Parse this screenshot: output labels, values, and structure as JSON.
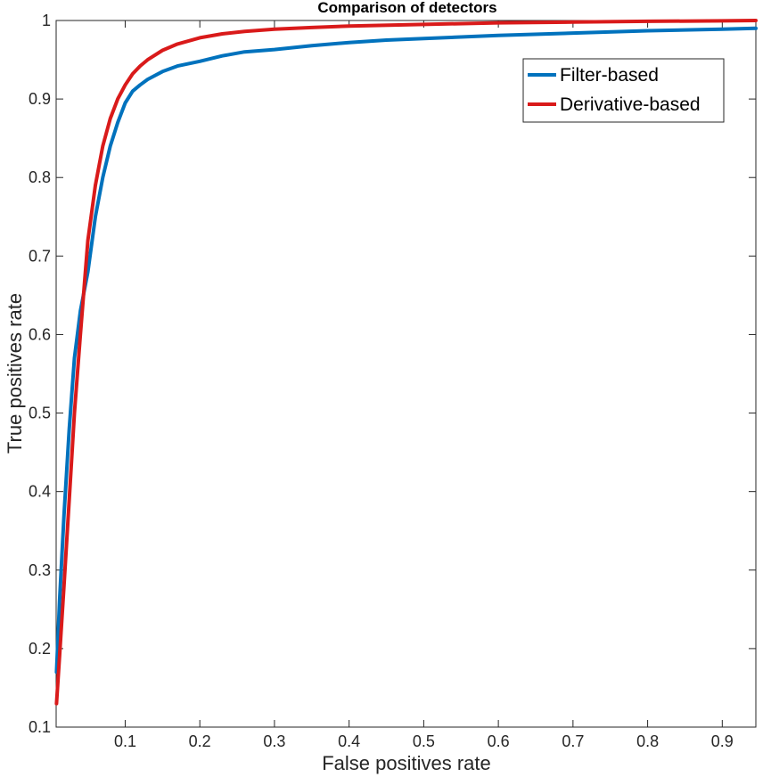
{
  "chart_data": {
    "type": "line",
    "title": "Comparison of detectors",
    "xlabel": "False positives rate",
    "ylabel": "True positives rate",
    "xlim": [
      0.0075,
      0.945
    ],
    "ylim": [
      0.1,
      1.0
    ],
    "xticks": [
      0.1,
      0.2,
      0.3,
      0.4,
      0.5,
      0.6,
      0.7,
      0.8,
      0.9
    ],
    "xtick_labels": [
      "0.1",
      "0.2",
      "0.3",
      "0.4",
      "0.5",
      "0.6",
      "0.7",
      "0.8",
      "0.9"
    ],
    "yticks": [
      0.1,
      0.2,
      0.3,
      0.4,
      0.5,
      0.6,
      0.7,
      0.8,
      0.9,
      1.0
    ],
    "ytick_labels": [
      "0.1",
      "0.2",
      "0.3",
      "0.4",
      "0.5",
      "0.6",
      "0.7",
      "0.8",
      "0.9",
      "1"
    ],
    "grid": false,
    "legend_position": "top-right",
    "series": [
      {
        "name": "Filter-based",
        "color": "#0072BD",
        "x": [
          0.008,
          0.012,
          0.018,
          0.025,
          0.032,
          0.04,
          0.05,
          0.06,
          0.07,
          0.08,
          0.09,
          0.1,
          0.11,
          0.12,
          0.13,
          0.15,
          0.17,
          0.2,
          0.23,
          0.26,
          0.3,
          0.35,
          0.4,
          0.45,
          0.5,
          0.6,
          0.7,
          0.8,
          0.9,
          0.945
        ],
        "y": [
          0.17,
          0.26,
          0.37,
          0.48,
          0.57,
          0.63,
          0.68,
          0.75,
          0.8,
          0.84,
          0.87,
          0.895,
          0.91,
          0.918,
          0.925,
          0.935,
          0.942,
          0.948,
          0.955,
          0.96,
          0.963,
          0.968,
          0.972,
          0.975,
          0.977,
          0.981,
          0.984,
          0.987,
          0.989,
          0.99
        ]
      },
      {
        "name": "Derivative-based",
        "color": "#D91A1A",
        "x": [
          0.008,
          0.012,
          0.018,
          0.025,
          0.032,
          0.04,
          0.05,
          0.06,
          0.07,
          0.08,
          0.09,
          0.1,
          0.11,
          0.12,
          0.13,
          0.15,
          0.17,
          0.2,
          0.23,
          0.26,
          0.3,
          0.35,
          0.4,
          0.5,
          0.6,
          0.7,
          0.8,
          0.9,
          0.945
        ],
        "y": [
          0.13,
          0.19,
          0.28,
          0.39,
          0.5,
          0.6,
          0.72,
          0.79,
          0.84,
          0.875,
          0.9,
          0.918,
          0.932,
          0.942,
          0.95,
          0.962,
          0.97,
          0.978,
          0.983,
          0.986,
          0.989,
          0.991,
          0.993,
          0.995,
          0.997,
          0.998,
          0.999,
          0.9995,
          1.0
        ]
      }
    ]
  }
}
